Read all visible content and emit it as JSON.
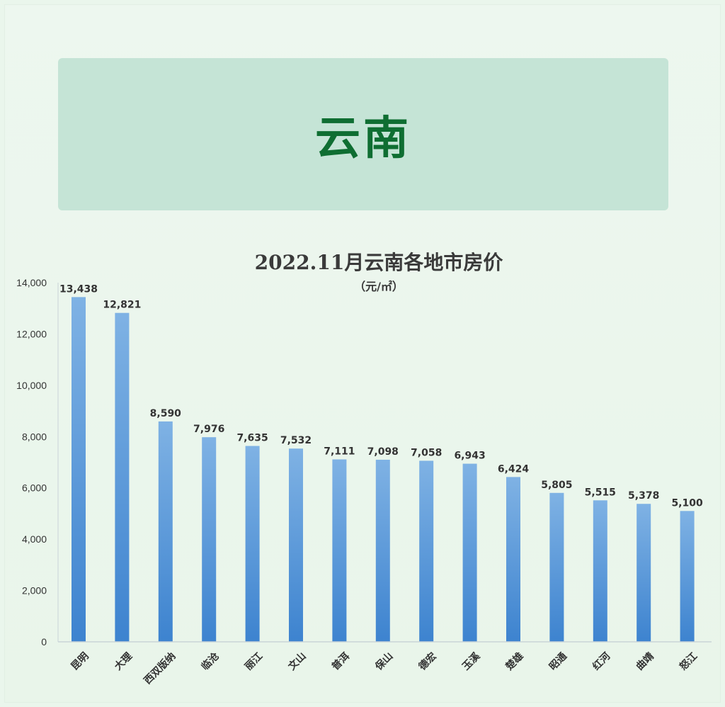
{
  "banner": {
    "title": "云南"
  },
  "colors": {
    "background": "#eaf6ec",
    "banner_fill": "#c5e4d6",
    "banner_text": "#0f6e32",
    "bar_top": "#7fb2e4",
    "bar_bottom": "#3d83cf",
    "axis": "#c9d3d8",
    "text": "#333333"
  },
  "chart_data": {
    "type": "bar",
    "title": "2022.11月云南各地市房价",
    "subtitle": "（元/㎡）",
    "xlabel": "",
    "ylabel": "",
    "categories": [
      "昆明",
      "大理",
      "西双版纳",
      "临沧",
      "丽江",
      "文山",
      "普洱",
      "保山",
      "德宏",
      "玉溪",
      "楚雄",
      "昭通",
      "红河",
      "曲靖",
      "怒江"
    ],
    "values": [
      13438,
      12821,
      8590,
      7976,
      7635,
      7532,
      7111,
      7098,
      7058,
      6943,
      6424,
      5805,
      5515,
      5378,
      5100
    ],
    "value_labels": [
      "13,438",
      "12,821",
      "8,590",
      "7,976",
      "7,635",
      "7,532",
      "7,111",
      "7,098",
      "7,058",
      "6,943",
      "6,424",
      "5,805",
      "5,515",
      "5,378",
      "5,100"
    ],
    "ylim": [
      0,
      14000
    ],
    "yticks": [
      0,
      2000,
      4000,
      6000,
      8000,
      10000,
      12000,
      14000
    ],
    "ytick_labels": [
      "0",
      "2,000",
      "4,000",
      "6,000",
      "8,000",
      "10,000",
      "12,000",
      "14,000"
    ],
    "grid": false,
    "legend": "none"
  }
}
